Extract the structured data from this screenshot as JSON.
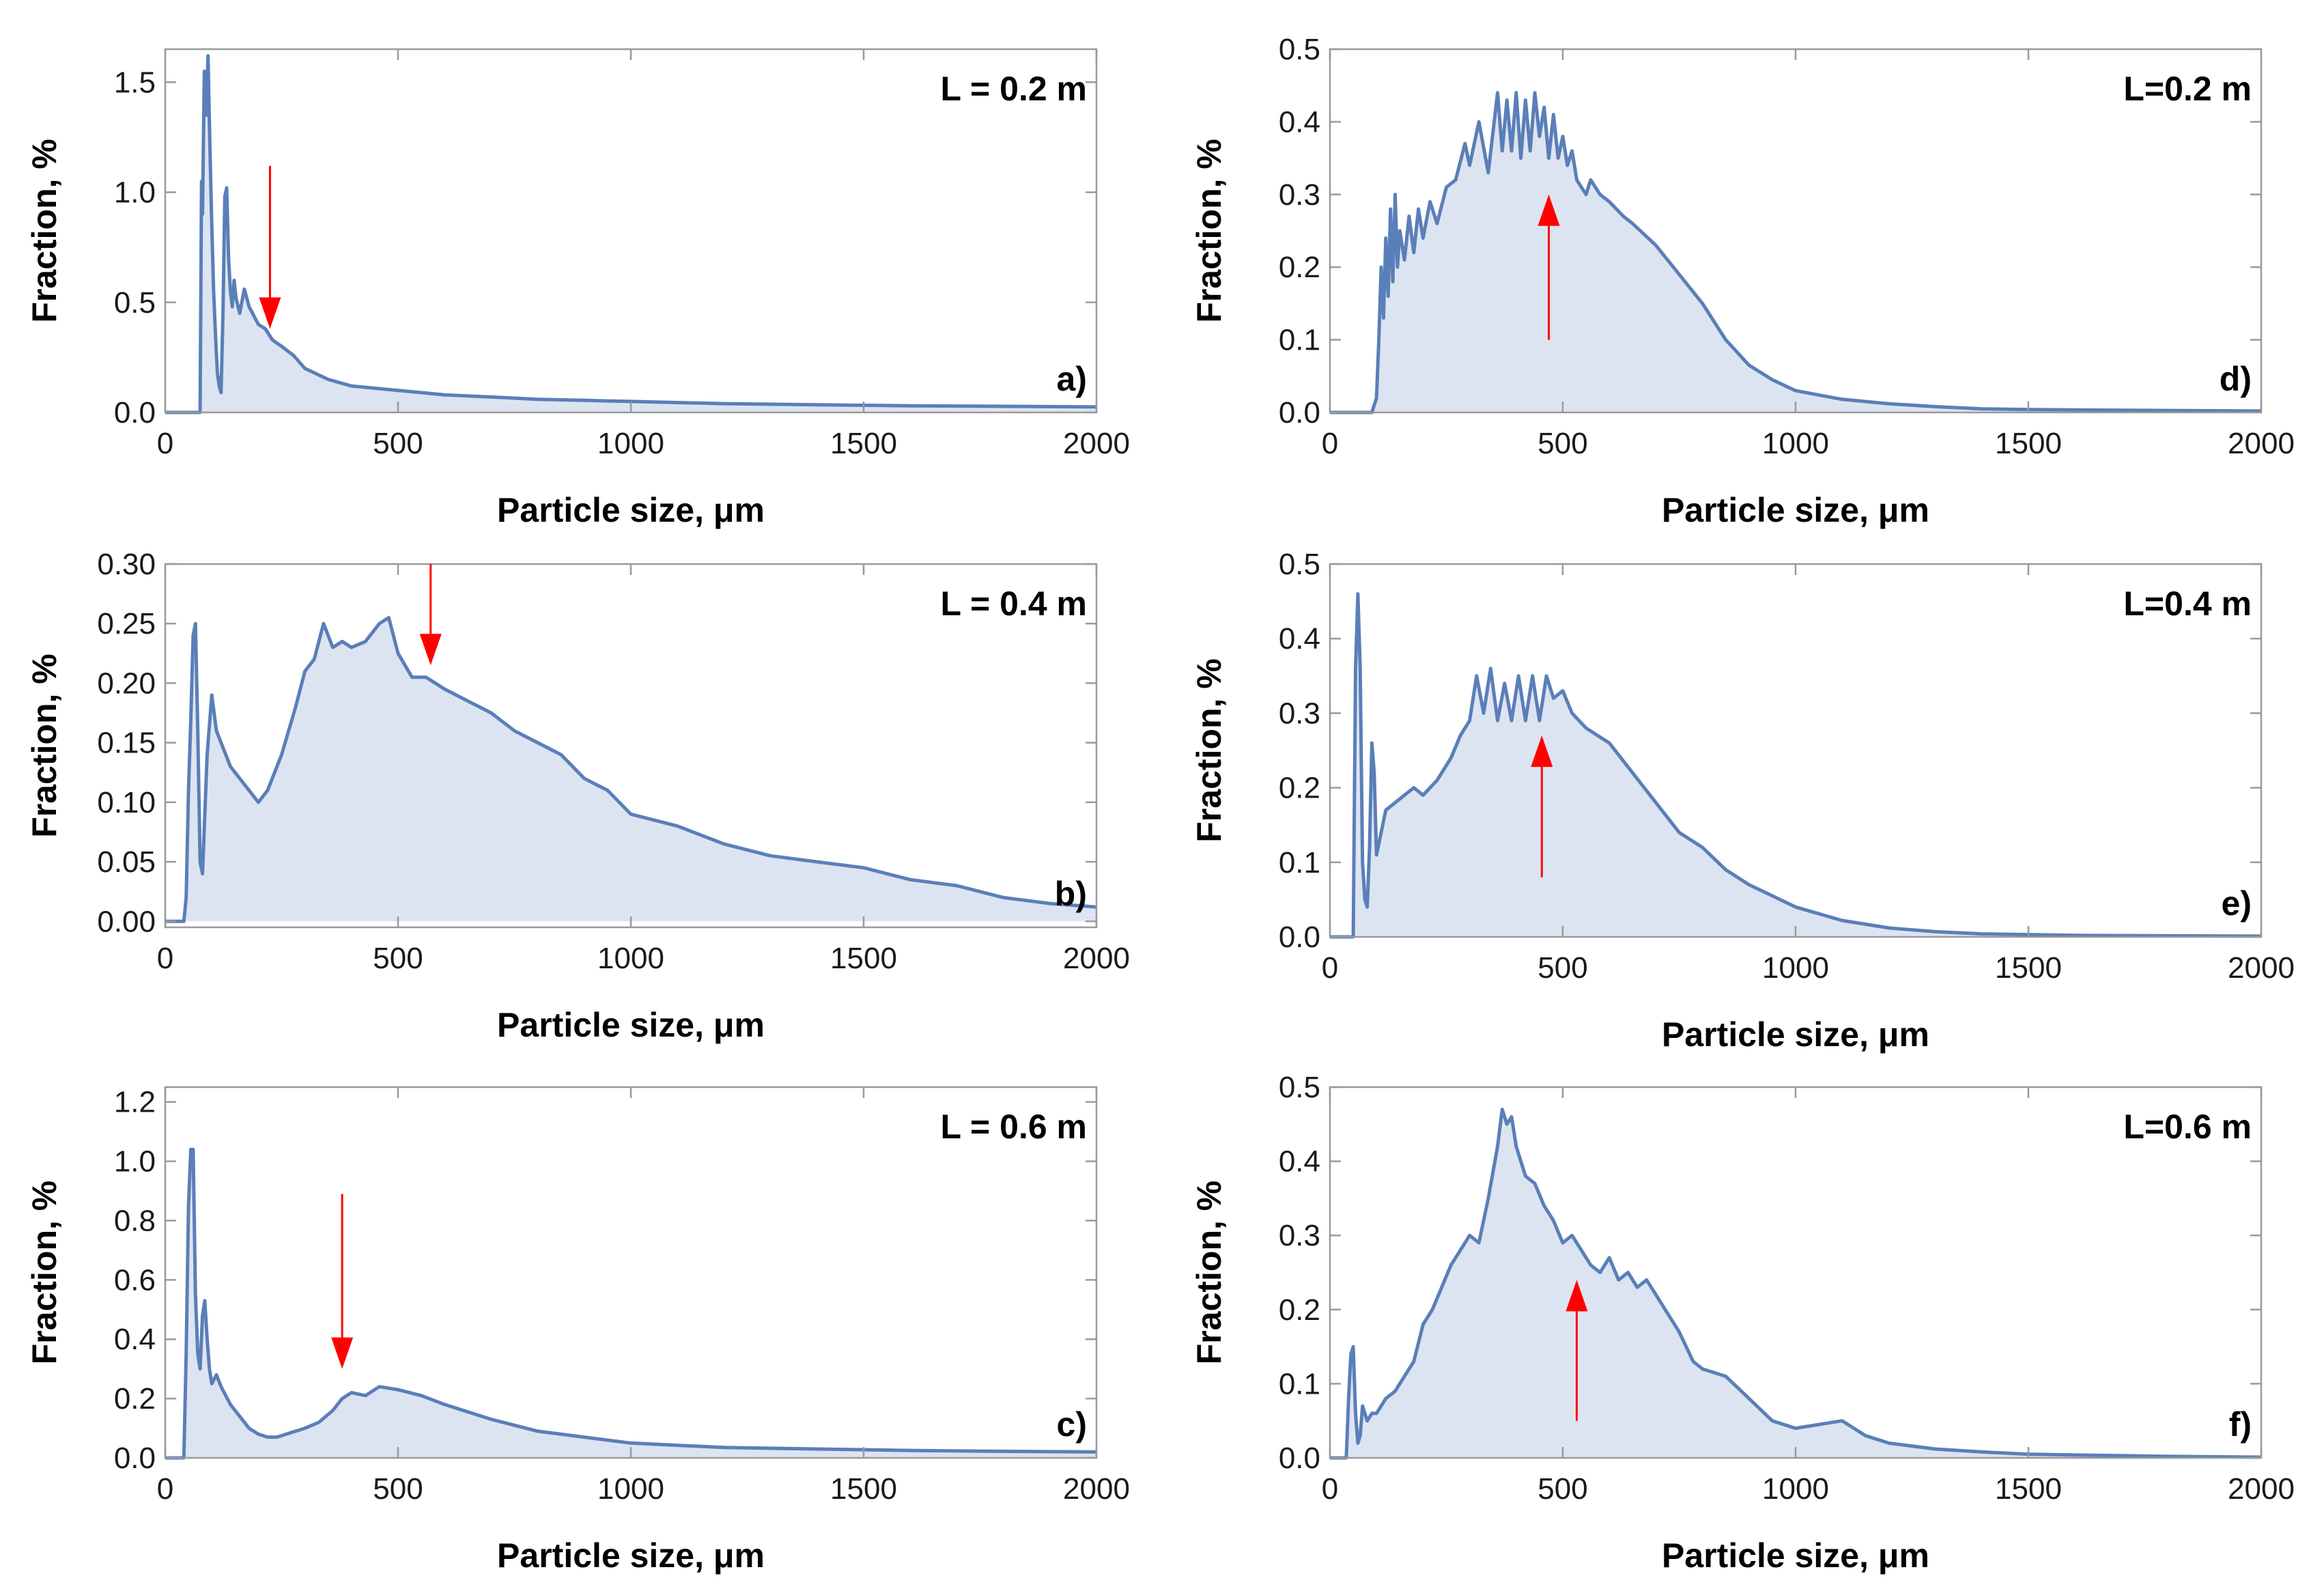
{
  "figure": {
    "colors": {
      "line": "#5a7fb8",
      "fill": "#dde4f1",
      "frame": "#9a9a9a",
      "arrow": "#ff0000"
    }
  },
  "chart_data": [
    {
      "id": "a",
      "type": "area",
      "panel_label": "a)",
      "annotation": "L = 0.2 m",
      "xlabel": "Particle size, μm",
      "ylabel": "Fraction, %",
      "xlim": [
        0,
        2000
      ],
      "ylim": [
        0,
        1.65
      ],
      "xticks": [
        0,
        500,
        1000,
        1500,
        2000
      ],
      "xtick_labels": [
        "0",
        "500",
        "1000",
        "1500",
        "2000"
      ],
      "yticks": [
        0,
        0.5,
        1.0,
        1.5
      ],
      "ytick_labels": [
        "0.0",
        "0.5",
        "1.0",
        "1.5"
      ],
      "arrow": {
        "direction": "down",
        "x": 225,
        "y_tail": 1.12,
        "y_head": 0.38
      },
      "x": [
        0,
        75,
        78,
        80,
        84,
        88,
        92,
        96,
        100,
        104,
        108,
        112,
        116,
        120,
        124,
        128,
        132,
        136,
        140,
        144,
        148,
        152,
        160,
        170,
        180,
        190,
        200,
        215,
        230,
        250,
        275,
        300,
        350,
        400,
        450,
        500,
        600,
        700,
        800,
        900,
        1000,
        1200,
        1400,
        1600,
        1800,
        2000
      ],
      "y": [
        0,
        0,
        1.05,
        0.9,
        1.55,
        1.35,
        1.62,
        1.2,
        0.85,
        0.55,
        0.35,
        0.18,
        0.12,
        0.09,
        0.45,
        0.98,
        1.02,
        0.7,
        0.55,
        0.48,
        0.6,
        0.52,
        0.45,
        0.56,
        0.48,
        0.44,
        0.4,
        0.38,
        0.33,
        0.3,
        0.26,
        0.2,
        0.15,
        0.12,
        0.11,
        0.1,
        0.08,
        0.07,
        0.06,
        0.055,
        0.05,
        0.04,
        0.035,
        0.03,
        0.028,
        0.025
      ]
    },
    {
      "id": "b",
      "type": "area",
      "panel_label": "b)",
      "annotation": "L = 0.4 m",
      "xlabel": "Particle size, μm",
      "ylabel": "Fraction, %",
      "xlim": [
        0,
        2000
      ],
      "ylim": [
        -0.005,
        0.3
      ],
      "xticks": [
        0,
        500,
        1000,
        1500,
        2000
      ],
      "xtick_labels": [
        "0",
        "500",
        "1000",
        "1500",
        "2000"
      ],
      "yticks": [
        0,
        0.05,
        0.1,
        0.15,
        0.2,
        0.25,
        0.3
      ],
      "ytick_labels": [
        "0.00",
        "0.05",
        "0.10",
        "0.15",
        "0.20",
        "0.25",
        "0.30"
      ],
      "arrow": {
        "direction": "down",
        "x": 570,
        "y_tail": 0.3,
        "y_head": 0.215
      },
      "x": [
        0,
        40,
        45,
        50,
        55,
        60,
        65,
        70,
        75,
        80,
        90,
        100,
        110,
        120,
        140,
        160,
        180,
        200,
        220,
        250,
        280,
        300,
        320,
        340,
        360,
        380,
        400,
        430,
        460,
        480,
        500,
        530,
        560,
        600,
        650,
        700,
        750,
        800,
        850,
        900,
        950,
        1000,
        1100,
        1200,
        1300,
        1400,
        1500,
        1600,
        1700,
        1800,
        1900,
        2000
      ],
      "y": [
        0,
        0,
        0.02,
        0.11,
        0.17,
        0.24,
        0.25,
        0.16,
        0.05,
        0.04,
        0.14,
        0.19,
        0.16,
        0.15,
        0.13,
        0.12,
        0.11,
        0.1,
        0.11,
        0.14,
        0.18,
        0.21,
        0.22,
        0.25,
        0.23,
        0.235,
        0.23,
        0.235,
        0.25,
        0.255,
        0.225,
        0.205,
        0.205,
        0.195,
        0.185,
        0.175,
        0.16,
        0.15,
        0.14,
        0.12,
        0.11,
        0.09,
        0.08,
        0.065,
        0.055,
        0.05,
        0.045,
        0.035,
        0.03,
        0.02,
        0.015,
        0.012
      ]
    },
    {
      "id": "c",
      "type": "area",
      "panel_label": "c)",
      "annotation": "L = 0.6 m",
      "xlabel": "Particle size, μm",
      "ylabel": "Fraction, %",
      "xlim": [
        0,
        2000
      ],
      "ylim": [
        0,
        1.25
      ],
      "xticks": [
        0,
        500,
        1000,
        1500,
        2000
      ],
      "xtick_labels": [
        "0",
        "500",
        "1000",
        "1500",
        "2000"
      ],
      "yticks": [
        0,
        0.2,
        0.4,
        0.6,
        0.8,
        1.0,
        1.2
      ],
      "ytick_labels": [
        "0.0",
        "0.2",
        "0.4",
        "0.6",
        "0.8",
        "1.0",
        "1.2"
      ],
      "arrow": {
        "direction": "down",
        "x": 380,
        "y_tail": 0.89,
        "y_head": 0.3
      },
      "x": [
        0,
        40,
        45,
        50,
        55,
        60,
        65,
        70,
        75,
        80,
        85,
        90,
        95,
        100,
        110,
        120,
        140,
        160,
        180,
        200,
        220,
        240,
        260,
        280,
        300,
        330,
        360,
        380,
        400,
        430,
        460,
        500,
        550,
        600,
        700,
        800,
        900,
        1000,
        1200,
        1400,
        1600,
        1800,
        2000
      ],
      "y": [
        0,
        0,
        0.35,
        0.85,
        1.04,
        1.04,
        0.55,
        0.35,
        0.3,
        0.48,
        0.53,
        0.4,
        0.3,
        0.25,
        0.28,
        0.24,
        0.18,
        0.14,
        0.1,
        0.08,
        0.07,
        0.07,
        0.08,
        0.09,
        0.1,
        0.12,
        0.16,
        0.2,
        0.22,
        0.21,
        0.24,
        0.23,
        0.21,
        0.18,
        0.13,
        0.09,
        0.07,
        0.05,
        0.035,
        0.03,
        0.025,
        0.022,
        0.02
      ]
    },
    {
      "id": "d",
      "type": "area",
      "panel_label": "d)",
      "annotation": "L=0.2 m",
      "xlabel": "Particle size, μm",
      "ylabel": "Fraction, %",
      "xlim": [
        0,
        2000
      ],
      "ylim": [
        0,
        0.5
      ],
      "xticks": [
        0,
        500,
        1000,
        1500,
        2000
      ],
      "xtick_labels": [
        "0",
        "500",
        "1000",
        "1500",
        "2000"
      ],
      "yticks": [
        0,
        0.1,
        0.2,
        0.3,
        0.4,
        0.5
      ],
      "ytick_labels": [
        "0.0",
        "0.1",
        "0.2",
        "0.3",
        "0.4",
        "0.5"
      ],
      "arrow": {
        "direction": "up",
        "x": 470,
        "y_tail": 0.1,
        "y_head": 0.3
      },
      "x": [
        0,
        90,
        100,
        105,
        110,
        115,
        120,
        125,
        130,
        135,
        140,
        145,
        150,
        160,
        170,
        180,
        190,
        200,
        215,
        230,
        250,
        270,
        290,
        300,
        320,
        340,
        360,
        370,
        380,
        390,
        400,
        410,
        420,
        430,
        440,
        450,
        460,
        470,
        480,
        490,
        500,
        510,
        520,
        530,
        540,
        550,
        560,
        580,
        600,
        630,
        650,
        700,
        750,
        800,
        850,
        900,
        950,
        1000,
        1100,
        1200,
        1300,
        1400,
        1500,
        1700,
        2000
      ],
      "y": [
        0,
        0,
        0.02,
        0.1,
        0.2,
        0.13,
        0.24,
        0.16,
        0.28,
        0.18,
        0.3,
        0.2,
        0.25,
        0.21,
        0.27,
        0.22,
        0.28,
        0.24,
        0.29,
        0.26,
        0.31,
        0.32,
        0.37,
        0.34,
        0.4,
        0.33,
        0.44,
        0.36,
        0.43,
        0.36,
        0.44,
        0.35,
        0.43,
        0.36,
        0.44,
        0.38,
        0.42,
        0.35,
        0.41,
        0.35,
        0.38,
        0.34,
        0.36,
        0.32,
        0.31,
        0.3,
        0.32,
        0.3,
        0.29,
        0.27,
        0.26,
        0.23,
        0.19,
        0.15,
        0.1,
        0.065,
        0.045,
        0.03,
        0.018,
        0.012,
        0.008,
        0.005,
        0.004,
        0.003,
        0.002
      ]
    },
    {
      "id": "e",
      "type": "area",
      "panel_label": "e)",
      "annotation": "L=0.4 m",
      "xlabel": "Particle size, μm",
      "ylabel": "Fraction, %",
      "xlim": [
        0,
        2000
      ],
      "ylim": [
        0,
        0.5
      ],
      "xticks": [
        0,
        500,
        1000,
        1500,
        2000
      ],
      "xtick_labels": [
        "0",
        "500",
        "1000",
        "1500",
        "2000"
      ],
      "yticks": [
        0,
        0.1,
        0.2,
        0.3,
        0.4,
        0.5
      ],
      "ytick_labels": [
        "0.0",
        "0.1",
        "0.2",
        "0.3",
        "0.4",
        "0.5"
      ],
      "arrow": {
        "direction": "up",
        "x": 455,
        "y_tail": 0.08,
        "y_head": 0.27
      },
      "x": [
        0,
        50,
        55,
        60,
        65,
        70,
        75,
        80,
        85,
        90,
        95,
        100,
        110,
        120,
        140,
        160,
        180,
        200,
        230,
        260,
        280,
        300,
        315,
        330,
        345,
        360,
        375,
        390,
        405,
        420,
        435,
        450,
        465,
        480,
        500,
        520,
        550,
        600,
        650,
        700,
        750,
        800,
        850,
        900,
        950,
        1000,
        1100,
        1200,
        1300,
        1400,
        1600,
        2000
      ],
      "y": [
        0,
        0,
        0.36,
        0.46,
        0.36,
        0.1,
        0.05,
        0.04,
        0.12,
        0.26,
        0.22,
        0.11,
        0.14,
        0.17,
        0.18,
        0.19,
        0.2,
        0.19,
        0.21,
        0.24,
        0.27,
        0.29,
        0.35,
        0.3,
        0.36,
        0.29,
        0.34,
        0.29,
        0.35,
        0.29,
        0.35,
        0.29,
        0.35,
        0.32,
        0.33,
        0.3,
        0.28,
        0.26,
        0.22,
        0.18,
        0.14,
        0.12,
        0.09,
        0.07,
        0.055,
        0.04,
        0.022,
        0.012,
        0.007,
        0.004,
        0.002,
        0.001
      ]
    },
    {
      "id": "f",
      "type": "area",
      "panel_label": "f)",
      "annotation": "L=0.6 m",
      "xlabel": "Particle size, μm",
      "ylabel": "Fraction, %",
      "xlim": [
        0,
        2000
      ],
      "ylim": [
        0,
        0.5
      ],
      "xticks": [
        0,
        500,
        1000,
        1500,
        2000
      ],
      "xtick_labels": [
        "0",
        "500",
        "1000",
        "1500",
        "2000"
      ],
      "yticks": [
        0,
        0.1,
        0.2,
        0.3,
        0.4,
        0.5
      ],
      "ytick_labels": [
        "0.0",
        "0.1",
        "0.2",
        "0.3",
        "0.4",
        "0.5"
      ],
      "arrow": {
        "direction": "up",
        "x": 530,
        "y_tail": 0.05,
        "y_head": 0.24
      },
      "x": [
        0,
        35,
        40,
        45,
        50,
        55,
        60,
        65,
        70,
        80,
        90,
        100,
        120,
        140,
        160,
        180,
        200,
        220,
        240,
        260,
        280,
        300,
        320,
        340,
        360,
        370,
        380,
        390,
        400,
        410,
        420,
        440,
        460,
        480,
        500,
        520,
        540,
        560,
        580,
        600,
        620,
        640,
        660,
        680,
        700,
        720,
        750,
        780,
        800,
        850,
        900,
        950,
        1000,
        1050,
        1100,
        1150,
        1200,
        1300,
        1400,
        1500,
        1600,
        1800,
        2000
      ],
      "y": [
        0,
        0,
        0.08,
        0.14,
        0.15,
        0.06,
        0.02,
        0.03,
        0.07,
        0.05,
        0.06,
        0.06,
        0.08,
        0.09,
        0.11,
        0.13,
        0.18,
        0.2,
        0.23,
        0.26,
        0.28,
        0.3,
        0.29,
        0.35,
        0.42,
        0.47,
        0.45,
        0.46,
        0.42,
        0.4,
        0.38,
        0.37,
        0.34,
        0.32,
        0.29,
        0.3,
        0.28,
        0.26,
        0.25,
        0.27,
        0.24,
        0.25,
        0.23,
        0.24,
        0.22,
        0.2,
        0.17,
        0.13,
        0.12,
        0.11,
        0.08,
        0.05,
        0.04,
        0.045,
        0.05,
        0.03,
        0.02,
        0.012,
        0.008,
        0.005,
        0.004,
        0.002,
        0.001
      ]
    }
  ]
}
